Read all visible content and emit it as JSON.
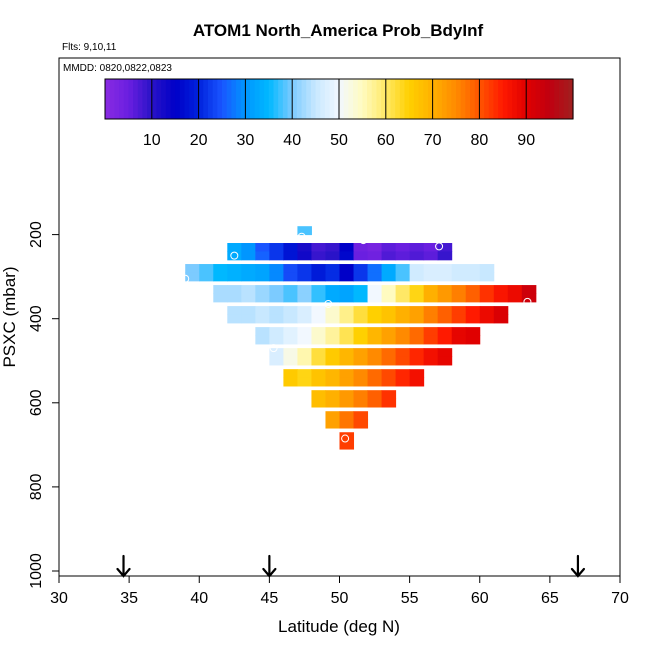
{
  "chart_data": {
    "type": "heatmap",
    "title": "ATOM1 North_America Prob_BdyInf",
    "flights_note": "Flts: 9,10,11",
    "dates_note": "MMDD: 0820,0822,0823",
    "xlabel": "Latitude (deg N)",
    "ylabel": "PSXC (mbar)",
    "xlim": [
      30,
      70
    ],
    "ylim": [
      1000,
      0
    ],
    "x_ticks": [
      "30",
      "35",
      "40",
      "45",
      "50",
      "55",
      "60",
      "65",
      "70"
    ],
    "y_ticks": [
      "200",
      "400",
      "600",
      "800",
      "1000"
    ],
    "colorbar": {
      "range": [
        0,
        100
      ],
      "ticks": [
        "10",
        "20",
        "30",
        "40",
        "50",
        "60",
        "70",
        "80",
        "90"
      ]
    },
    "cell_width_deg": 1,
    "cell_height_mbar": 20,
    "cells": [
      {
        "lat": 47,
        "p": 190,
        "v": 38
      },
      {
        "lat": 42,
        "p": 230,
        "v": 33
      },
      {
        "lat": 43,
        "p": 230,
        "v": 30
      },
      {
        "lat": 44,
        "p": 230,
        "v": 25
      },
      {
        "lat": 45,
        "p": 230,
        "v": 22
      },
      {
        "lat": 46,
        "p": 230,
        "v": 18
      },
      {
        "lat": 47,
        "p": 230,
        "v": 12
      },
      {
        "lat": 48,
        "p": 230,
        "v": 8
      },
      {
        "lat": 49,
        "p": 230,
        "v": 9
      },
      {
        "lat": 50,
        "p": 230,
        "v": 15
      },
      {
        "lat": 51,
        "p": 230,
        "v": 4
      },
      {
        "lat": 52,
        "p": 230,
        "v": 3
      },
      {
        "lat": 53,
        "p": 230,
        "v": 6
      },
      {
        "lat": 54,
        "p": 230,
        "v": 5
      },
      {
        "lat": 55,
        "p": 230,
        "v": 6
      },
      {
        "lat": 56,
        "p": 230,
        "v": 5
      },
      {
        "lat": 57,
        "p": 230,
        "v": 8
      },
      {
        "lat": 42,
        "p": 250,
        "v": 33
      },
      {
        "lat": 43,
        "p": 250,
        "v": 30
      },
      {
        "lat": 44,
        "p": 250,
        "v": 26
      },
      {
        "lat": 45,
        "p": 250,
        "v": 22
      },
      {
        "lat": 46,
        "p": 250,
        "v": 18
      },
      {
        "lat": 47,
        "p": 250,
        "v": 13
      },
      {
        "lat": 48,
        "p": 250,
        "v": 9
      },
      {
        "lat": 49,
        "p": 250,
        "v": 10
      },
      {
        "lat": 50,
        "p": 250,
        "v": 16
      },
      {
        "lat": 51,
        "p": 250,
        "v": 5
      },
      {
        "lat": 52,
        "p": 250,
        "v": 4
      },
      {
        "lat": 53,
        "p": 250,
        "v": 7
      },
      {
        "lat": 54,
        "p": 250,
        "v": 6
      },
      {
        "lat": 55,
        "p": 250,
        "v": 7
      },
      {
        "lat": 56,
        "p": 250,
        "v": 6
      },
      {
        "lat": 57,
        "p": 250,
        "v": 9
      },
      {
        "lat": 39,
        "p": 280,
        "v": 40
      },
      {
        "lat": 40,
        "p": 280,
        "v": 38
      },
      {
        "lat": 41,
        "p": 280,
        "v": 35
      },
      {
        "lat": 42,
        "p": 280,
        "v": 34
      },
      {
        "lat": 43,
        "p": 280,
        "v": 33
      },
      {
        "lat": 44,
        "p": 280,
        "v": 32
      },
      {
        "lat": 45,
        "p": 280,
        "v": 29
      },
      {
        "lat": 46,
        "p": 280,
        "v": 24
      },
      {
        "lat": 47,
        "p": 280,
        "v": 22
      },
      {
        "lat": 48,
        "p": 280,
        "v": 19
      },
      {
        "lat": 49,
        "p": 280,
        "v": 21
      },
      {
        "lat": 50,
        "p": 280,
        "v": 15
      },
      {
        "lat": 51,
        "p": 280,
        "v": 22
      },
      {
        "lat": 52,
        "p": 280,
        "v": 27
      },
      {
        "lat": 53,
        "p": 280,
        "v": 33
      },
      {
        "lat": 54,
        "p": 280,
        "v": 38
      },
      {
        "lat": 55,
        "p": 280,
        "v": 46
      },
      {
        "lat": 56,
        "p": 280,
        "v": 47
      },
      {
        "lat": 57,
        "p": 280,
        "v": 47
      },
      {
        "lat": 58,
        "p": 280,
        "v": 46
      },
      {
        "lat": 59,
        "p": 280,
        "v": 46
      },
      {
        "lat": 60,
        "p": 280,
        "v": 45
      },
      {
        "lat": 39,
        "p": 300,
        "v": 40
      },
      {
        "lat": 40,
        "p": 300,
        "v": 38
      },
      {
        "lat": 41,
        "p": 300,
        "v": 35
      },
      {
        "lat": 42,
        "p": 300,
        "v": 34
      },
      {
        "lat": 43,
        "p": 300,
        "v": 33
      },
      {
        "lat": 44,
        "p": 300,
        "v": 32
      },
      {
        "lat": 45,
        "p": 300,
        "v": 29
      },
      {
        "lat": 46,
        "p": 300,
        "v": 24
      },
      {
        "lat": 47,
        "p": 300,
        "v": 22
      },
      {
        "lat": 48,
        "p": 300,
        "v": 19
      },
      {
        "lat": 49,
        "p": 300,
        "v": 21
      },
      {
        "lat": 50,
        "p": 300,
        "v": 15
      },
      {
        "lat": 51,
        "p": 300,
        "v": 22
      },
      {
        "lat": 52,
        "p": 300,
        "v": 27
      },
      {
        "lat": 53,
        "p": 300,
        "v": 33
      },
      {
        "lat": 54,
        "p": 300,
        "v": 38
      },
      {
        "lat": 55,
        "p": 300,
        "v": 46
      },
      {
        "lat": 56,
        "p": 300,
        "v": 47
      },
      {
        "lat": 57,
        "p": 300,
        "v": 47
      },
      {
        "lat": 58,
        "p": 300,
        "v": 46
      },
      {
        "lat": 59,
        "p": 300,
        "v": 46
      },
      {
        "lat": 60,
        "p": 300,
        "v": 45
      },
      {
        "lat": 41,
        "p": 330,
        "v": 43
      },
      {
        "lat": 42,
        "p": 330,
        "v": 43
      },
      {
        "lat": 43,
        "p": 330,
        "v": 44
      },
      {
        "lat": 44,
        "p": 330,
        "v": 42
      },
      {
        "lat": 45,
        "p": 330,
        "v": 40
      },
      {
        "lat": 46,
        "p": 330,
        "v": 38
      },
      {
        "lat": 47,
        "p": 330,
        "v": 41
      },
      {
        "lat": 48,
        "p": 330,
        "v": 37
      },
      {
        "lat": 49,
        "p": 330,
        "v": 33
      },
      {
        "lat": 50,
        "p": 330,
        "v": 32
      },
      {
        "lat": 51,
        "p": 330,
        "v": 35
      },
      {
        "lat": 52,
        "p": 330,
        "v": 50
      },
      {
        "lat": 53,
        "p": 330,
        "v": 55
      },
      {
        "lat": 54,
        "p": 330,
        "v": 60
      },
      {
        "lat": 55,
        "p": 330,
        "v": 64
      },
      {
        "lat": 56,
        "p": 330,
        "v": 70
      },
      {
        "lat": 57,
        "p": 330,
        "v": 73
      },
      {
        "lat": 58,
        "p": 330,
        "v": 76
      },
      {
        "lat": 59,
        "p": 330,
        "v": 79
      },
      {
        "lat": 60,
        "p": 330,
        "v": 83
      },
      {
        "lat": 61,
        "p": 330,
        "v": 86
      },
      {
        "lat": 62,
        "p": 330,
        "v": 88
      },
      {
        "lat": 63,
        "p": 330,
        "v": 93
      },
      {
        "lat": 41,
        "p": 350,
        "v": 43
      },
      {
        "lat": 42,
        "p": 350,
        "v": 43
      },
      {
        "lat": 43,
        "p": 350,
        "v": 44
      },
      {
        "lat": 44,
        "p": 350,
        "v": 42
      },
      {
        "lat": 45,
        "p": 350,
        "v": 40
      },
      {
        "lat": 46,
        "p": 350,
        "v": 38
      },
      {
        "lat": 47,
        "p": 350,
        "v": 41
      },
      {
        "lat": 48,
        "p": 350,
        "v": 37
      },
      {
        "lat": 49,
        "p": 350,
        "v": 33
      },
      {
        "lat": 50,
        "p": 350,
        "v": 32
      },
      {
        "lat": 51,
        "p": 350,
        "v": 35
      },
      {
        "lat": 52,
        "p": 350,
        "v": 50
      },
      {
        "lat": 53,
        "p": 350,
        "v": 55
      },
      {
        "lat": 54,
        "p": 350,
        "v": 60
      },
      {
        "lat": 55,
        "p": 350,
        "v": 64
      },
      {
        "lat": 56,
        "p": 350,
        "v": 70
      },
      {
        "lat": 57,
        "p": 350,
        "v": 73
      },
      {
        "lat": 58,
        "p": 350,
        "v": 76
      },
      {
        "lat": 59,
        "p": 350,
        "v": 79
      },
      {
        "lat": 60,
        "p": 350,
        "v": 83
      },
      {
        "lat": 61,
        "p": 350,
        "v": 86
      },
      {
        "lat": 62,
        "p": 350,
        "v": 88
      },
      {
        "lat": 63,
        "p": 350,
        "v": 93
      },
      {
        "lat": 42,
        "p": 380,
        "v": 44
      },
      {
        "lat": 43,
        "p": 380,
        "v": 44
      },
      {
        "lat": 44,
        "p": 380,
        "v": 45
      },
      {
        "lat": 45,
        "p": 380,
        "v": 44
      },
      {
        "lat": 46,
        "p": 380,
        "v": 45
      },
      {
        "lat": 47,
        "p": 380,
        "v": 47
      },
      {
        "lat": 48,
        "p": 380,
        "v": 50
      },
      {
        "lat": 49,
        "p": 380,
        "v": 54
      },
      {
        "lat": 50,
        "p": 380,
        "v": 58
      },
      {
        "lat": 51,
        "p": 380,
        "v": 62
      },
      {
        "lat": 52,
        "p": 380,
        "v": 65
      },
      {
        "lat": 53,
        "p": 380,
        "v": 67
      },
      {
        "lat": 54,
        "p": 380,
        "v": 70
      },
      {
        "lat": 55,
        "p": 380,
        "v": 72
      },
      {
        "lat": 56,
        "p": 380,
        "v": 76
      },
      {
        "lat": 57,
        "p": 380,
        "v": 79
      },
      {
        "lat": 58,
        "p": 380,
        "v": 82
      },
      {
        "lat": 59,
        "p": 380,
        "v": 85
      },
      {
        "lat": 60,
        "p": 380,
        "v": 88
      },
      {
        "lat": 61,
        "p": 380,
        "v": 91
      },
      {
        "lat": 42,
        "p": 400,
        "v": 44
      },
      {
        "lat": 43,
        "p": 400,
        "v": 44
      },
      {
        "lat": 44,
        "p": 400,
        "v": 45
      },
      {
        "lat": 45,
        "p": 400,
        "v": 44
      },
      {
        "lat": 46,
        "p": 400,
        "v": 45
      },
      {
        "lat": 47,
        "p": 400,
        "v": 47
      },
      {
        "lat": 48,
        "p": 400,
        "v": 50
      },
      {
        "lat": 49,
        "p": 400,
        "v": 54
      },
      {
        "lat": 50,
        "p": 400,
        "v": 58
      },
      {
        "lat": 51,
        "p": 400,
        "v": 62
      },
      {
        "lat": 52,
        "p": 400,
        "v": 65
      },
      {
        "lat": 53,
        "p": 400,
        "v": 67
      },
      {
        "lat": 54,
        "p": 400,
        "v": 70
      },
      {
        "lat": 55,
        "p": 400,
        "v": 72
      },
      {
        "lat": 56,
        "p": 400,
        "v": 76
      },
      {
        "lat": 57,
        "p": 400,
        "v": 79
      },
      {
        "lat": 58,
        "p": 400,
        "v": 82
      },
      {
        "lat": 59,
        "p": 400,
        "v": 85
      },
      {
        "lat": 60,
        "p": 400,
        "v": 88
      },
      {
        "lat": 61,
        "p": 400,
        "v": 91
      },
      {
        "lat": 44,
        "p": 430,
        "v": 44
      },
      {
        "lat": 45,
        "p": 430,
        "v": 46
      },
      {
        "lat": 46,
        "p": 430,
        "v": 48
      },
      {
        "lat": 47,
        "p": 430,
        "v": 50
      },
      {
        "lat": 48,
        "p": 430,
        "v": 54
      },
      {
        "lat": 49,
        "p": 430,
        "v": 57
      },
      {
        "lat": 50,
        "p": 430,
        "v": 61
      },
      {
        "lat": 51,
        "p": 430,
        "v": 65
      },
      {
        "lat": 52,
        "p": 430,
        "v": 69
      },
      {
        "lat": 53,
        "p": 430,
        "v": 72
      },
      {
        "lat": 54,
        "p": 430,
        "v": 75
      },
      {
        "lat": 55,
        "p": 430,
        "v": 78
      },
      {
        "lat": 56,
        "p": 430,
        "v": 82
      },
      {
        "lat": 57,
        "p": 430,
        "v": 85
      },
      {
        "lat": 58,
        "p": 430,
        "v": 89
      },
      {
        "lat": 59,
        "p": 430,
        "v": 90
      },
      {
        "lat": 44,
        "p": 450,
        "v": 44
      },
      {
        "lat": 45,
        "p": 450,
        "v": 46
      },
      {
        "lat": 46,
        "p": 450,
        "v": 48
      },
      {
        "lat": 47,
        "p": 450,
        "v": 50
      },
      {
        "lat": 48,
        "p": 450,
        "v": 54
      },
      {
        "lat": 49,
        "p": 450,
        "v": 57
      },
      {
        "lat": 50,
        "p": 450,
        "v": 61
      },
      {
        "lat": 51,
        "p": 450,
        "v": 65
      },
      {
        "lat": 52,
        "p": 450,
        "v": 69
      },
      {
        "lat": 53,
        "p": 450,
        "v": 72
      },
      {
        "lat": 54,
        "p": 450,
        "v": 75
      },
      {
        "lat": 55,
        "p": 450,
        "v": 78
      },
      {
        "lat": 56,
        "p": 450,
        "v": 82
      },
      {
        "lat": 57,
        "p": 450,
        "v": 85
      },
      {
        "lat": 58,
        "p": 450,
        "v": 89
      },
      {
        "lat": 59,
        "p": 450,
        "v": 90
      },
      {
        "lat": 45,
        "p": 480,
        "v": 47
      },
      {
        "lat": 46,
        "p": 480,
        "v": 52
      },
      {
        "lat": 47,
        "p": 480,
        "v": 56
      },
      {
        "lat": 48,
        "p": 480,
        "v": 62
      },
      {
        "lat": 49,
        "p": 480,
        "v": 66
      },
      {
        "lat": 50,
        "p": 480,
        "v": 69
      },
      {
        "lat": 51,
        "p": 480,
        "v": 72
      },
      {
        "lat": 52,
        "p": 480,
        "v": 75
      },
      {
        "lat": 53,
        "p": 480,
        "v": 78
      },
      {
        "lat": 54,
        "p": 480,
        "v": 81
      },
      {
        "lat": 55,
        "p": 480,
        "v": 84
      },
      {
        "lat": 56,
        "p": 480,
        "v": 87
      },
      {
        "lat": 57,
        "p": 480,
        "v": 89
      },
      {
        "lat": 45,
        "p": 500,
        "v": 47
      },
      {
        "lat": 46,
        "p": 500,
        "v": 52
      },
      {
        "lat": 47,
        "p": 500,
        "v": 56
      },
      {
        "lat": 48,
        "p": 500,
        "v": 62
      },
      {
        "lat": 49,
        "p": 500,
        "v": 66
      },
      {
        "lat": 50,
        "p": 500,
        "v": 69
      },
      {
        "lat": 51,
        "p": 500,
        "v": 72
      },
      {
        "lat": 52,
        "p": 500,
        "v": 75
      },
      {
        "lat": 53,
        "p": 500,
        "v": 78
      },
      {
        "lat": 54,
        "p": 500,
        "v": 81
      },
      {
        "lat": 55,
        "p": 500,
        "v": 84
      },
      {
        "lat": 56,
        "p": 500,
        "v": 87
      },
      {
        "lat": 57,
        "p": 500,
        "v": 89
      },
      {
        "lat": 46,
        "p": 530,
        "v": 66
      },
      {
        "lat": 47,
        "p": 530,
        "v": 64
      },
      {
        "lat": 48,
        "p": 530,
        "v": 67
      },
      {
        "lat": 49,
        "p": 530,
        "v": 69
      },
      {
        "lat": 50,
        "p": 530,
        "v": 72
      },
      {
        "lat": 51,
        "p": 530,
        "v": 75
      },
      {
        "lat": 52,
        "p": 530,
        "v": 78
      },
      {
        "lat": 53,
        "p": 530,
        "v": 81
      },
      {
        "lat": 54,
        "p": 530,
        "v": 84
      },
      {
        "lat": 55,
        "p": 530,
        "v": 87
      },
      {
        "lat": 46,
        "p": 550,
        "v": 66
      },
      {
        "lat": 47,
        "p": 550,
        "v": 64
      },
      {
        "lat": 48,
        "p": 550,
        "v": 67
      },
      {
        "lat": 49,
        "p": 550,
        "v": 69
      },
      {
        "lat": 50,
        "p": 550,
        "v": 72
      },
      {
        "lat": 51,
        "p": 550,
        "v": 75
      },
      {
        "lat": 52,
        "p": 550,
        "v": 78
      },
      {
        "lat": 53,
        "p": 550,
        "v": 81
      },
      {
        "lat": 54,
        "p": 550,
        "v": 84
      },
      {
        "lat": 55,
        "p": 550,
        "v": 87
      },
      {
        "lat": 48,
        "p": 580,
        "v": 68
      },
      {
        "lat": 49,
        "p": 580,
        "v": 70
      },
      {
        "lat": 50,
        "p": 580,
        "v": 73
      },
      {
        "lat": 51,
        "p": 580,
        "v": 76
      },
      {
        "lat": 52,
        "p": 580,
        "v": 79
      },
      {
        "lat": 53,
        "p": 580,
        "v": 83
      },
      {
        "lat": 48,
        "p": 600,
        "v": 68
      },
      {
        "lat": 49,
        "p": 600,
        "v": 70
      },
      {
        "lat": 50,
        "p": 600,
        "v": 73
      },
      {
        "lat": 51,
        "p": 600,
        "v": 76
      },
      {
        "lat": 52,
        "p": 600,
        "v": 79
      },
      {
        "lat": 53,
        "p": 600,
        "v": 83
      },
      {
        "lat": 49,
        "p": 630,
        "v": 72
      },
      {
        "lat": 50,
        "p": 630,
        "v": 77
      },
      {
        "lat": 51,
        "p": 630,
        "v": 81
      },
      {
        "lat": 49,
        "p": 650,
        "v": 72
      },
      {
        "lat": 50,
        "p": 650,
        "v": 77
      },
      {
        "lat": 51,
        "p": 650,
        "v": 81
      },
      {
        "lat": 50,
        "p": 680,
        "v": 82
      },
      {
        "lat": 50,
        "p": 700,
        "v": 82
      }
    ],
    "markers": [
      {
        "lat": 47.3,
        "p": 205
      },
      {
        "lat": 51.7,
        "p": 213
      },
      {
        "lat": 57.1,
        "p": 228
      },
      {
        "lat": 42.5,
        "p": 250
      },
      {
        "lat": 39.0,
        "p": 305
      },
      {
        "lat": 49.2,
        "p": 365
      },
      {
        "lat": 63.4,
        "p": 360
      },
      {
        "lat": 45.3,
        "p": 470
      },
      {
        "lat": 50.4,
        "p": 685
      }
    ],
    "arrows": [
      34.6,
      45.0,
      67.0
    ]
  }
}
